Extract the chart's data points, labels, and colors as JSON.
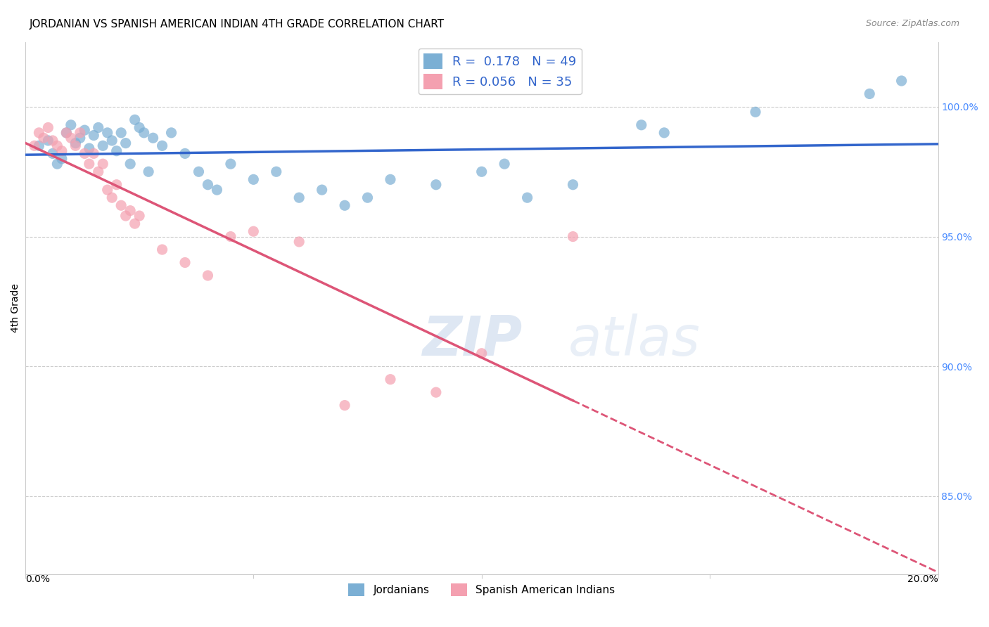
{
  "title": "JORDANIAN VS SPANISH AMERICAN INDIAN 4TH GRADE CORRELATION CHART",
  "source": "Source: ZipAtlas.com",
  "ylabel": "4th Grade",
  "watermark_zip": "ZIP",
  "watermark_atlas": "atlas",
  "xlim": [
    0.0,
    20.0
  ],
  "ylim": [
    82.0,
    102.5
  ],
  "ytick_values": [
    85.0,
    90.0,
    95.0,
    100.0
  ],
  "legend_blue_R": "0.178",
  "legend_blue_N": "49",
  "legend_pink_R": "0.056",
  "legend_pink_N": "35",
  "blue_scatter_x": [
    0.3,
    0.5,
    0.6,
    0.7,
    0.8,
    0.9,
    1.0,
    1.1,
    1.2,
    1.3,
    1.4,
    1.5,
    1.6,
    1.7,
    1.8,
    1.9,
    2.0,
    2.1,
    2.2,
    2.3,
    2.4,
    2.5,
    2.6,
    2.7,
    2.8,
    3.0,
    3.2,
    3.5,
    3.8,
    4.0,
    4.2,
    4.5,
    5.0,
    5.5,
    6.0,
    6.5,
    7.0,
    7.5,
    8.0,
    9.0,
    10.0,
    10.5,
    11.0,
    12.0,
    13.5,
    14.0,
    16.0,
    18.5,
    19.2
  ],
  "blue_scatter_y": [
    98.5,
    98.7,
    98.2,
    97.8,
    98.0,
    99.0,
    99.3,
    98.6,
    98.8,
    99.1,
    98.4,
    98.9,
    99.2,
    98.5,
    99.0,
    98.7,
    98.3,
    99.0,
    98.6,
    97.8,
    99.5,
    99.2,
    99.0,
    97.5,
    98.8,
    98.5,
    99.0,
    98.2,
    97.5,
    97.0,
    96.8,
    97.8,
    97.2,
    97.5,
    96.5,
    96.8,
    96.2,
    96.5,
    97.2,
    97.0,
    97.5,
    97.8,
    96.5,
    97.0,
    99.3,
    99.0,
    99.8,
    100.5,
    101.0
  ],
  "pink_scatter_x": [
    0.2,
    0.3,
    0.4,
    0.5,
    0.6,
    0.7,
    0.8,
    0.9,
    1.0,
    1.1,
    1.2,
    1.3,
    1.4,
    1.5,
    1.6,
    1.7,
    1.8,
    1.9,
    2.0,
    2.1,
    2.2,
    2.3,
    2.4,
    2.5,
    3.0,
    3.5,
    4.0,
    4.5,
    5.0,
    6.0,
    7.0,
    8.0,
    9.0,
    10.0,
    12.0
  ],
  "pink_scatter_y": [
    98.5,
    99.0,
    98.8,
    99.2,
    98.7,
    98.5,
    98.3,
    99.0,
    98.8,
    98.5,
    99.0,
    98.2,
    97.8,
    98.2,
    97.5,
    97.8,
    96.8,
    96.5,
    97.0,
    96.2,
    95.8,
    96.0,
    95.5,
    95.8,
    94.5,
    94.0,
    93.5,
    95.0,
    95.2,
    94.8,
    88.5,
    89.5,
    89.0,
    90.5,
    95.0
  ],
  "blue_color": "#7bafd4",
  "pink_color": "#f4a0b0",
  "blue_line_color": "#3366cc",
  "pink_line_color": "#dd5577",
  "background_color": "#ffffff",
  "grid_color": "#cccccc",
  "right_axis_color": "#4488ff",
  "title_fontsize": 11,
  "source_fontsize": 9
}
